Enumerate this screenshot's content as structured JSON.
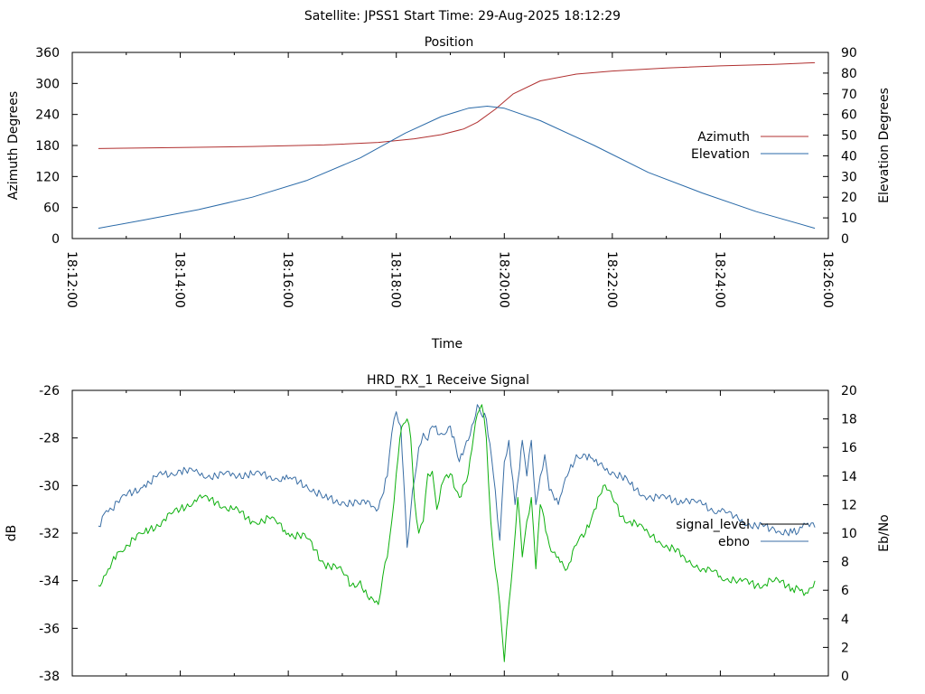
{
  "suptitle": "Satellite: JPSS1    Start Time: 29-Aug-2025 18:12:29",
  "colors": {
    "azimuth": "#b03030",
    "elevation": "#2a6aa8",
    "signal_level": "#000000",
    "ebno_line": "#3a6ea5",
    "signal_trace": "#0db00d"
  },
  "chart_data": [
    {
      "type": "line",
      "title": "Position",
      "xlabel": "Time",
      "ylabel": "Azimuth Degrees",
      "y2label": "Elevation Degrees",
      "xlim": [
        0,
        840
      ],
      "x_tick_values": [
        0,
        120,
        240,
        360,
        480,
        600,
        720,
        840
      ],
      "x_tick_labels": [
        "18:12:00",
        "18:14:00",
        "18:16:00",
        "18:18:00",
        "18:20:00",
        "18:22:00",
        "18:24:00",
        "18:26:00"
      ],
      "ylim": [
        0,
        360
      ],
      "y_ticks": [
        0,
        60,
        120,
        180,
        240,
        300,
        360
      ],
      "y2lim": [
        0,
        90
      ],
      "y2_ticks": [
        0,
        10,
        20,
        30,
        40,
        50,
        60,
        70,
        80,
        90
      ],
      "legend_position": "right",
      "grid": false,
      "series": [
        {
          "name": "Azimuth",
          "axis": "left",
          "x": [
            29,
            120,
            200,
            280,
            340,
            380,
            410,
            435,
            450,
            470,
            490,
            520,
            560,
            600,
            660,
            720,
            780,
            825
          ],
          "y": [
            174,
            176,
            178,
            181,
            186,
            193,
            201,
            212,
            225,
            250,
            280,
            305,
            318,
            324,
            330,
            334,
            337,
            340
          ]
        },
        {
          "name": "Elevation",
          "axis": "right",
          "x": [
            29,
            80,
            140,
            200,
            260,
            320,
            370,
            410,
            440,
            461,
            480,
            520,
            580,
            640,
            700,
            760,
            825
          ],
          "y": [
            5,
            9,
            14,
            20,
            28,
            39,
            51,
            59,
            63,
            64,
            63,
            57,
            45,
            32,
            22,
            13,
            5
          ]
        }
      ]
    },
    {
      "type": "line",
      "title": "HRD_RX_1 Receive Signal",
      "xlabel": "",
      "ylabel": "dB",
      "y2label": "Eb/No",
      "xlim": [
        0,
        840
      ],
      "ylim": [
        -38,
        -26
      ],
      "y_ticks": [
        -38,
        -36,
        -34,
        -32,
        -30,
        -28,
        -26
      ],
      "y2lim": [
        0,
        20
      ],
      "y2_ticks": [
        0,
        2,
        4,
        6,
        8,
        10,
        12,
        14,
        16,
        18,
        20
      ],
      "legend_position": "right",
      "legend_entries": [
        "signal_level",
        "ebno"
      ],
      "series": [
        {
          "name": "ebno",
          "axis": "right",
          "x": [
            29,
            40,
            60,
            80,
            100,
            120,
            140,
            160,
            180,
            200,
            220,
            240,
            260,
            280,
            300,
            320,
            330,
            340,
            350,
            355,
            360,
            365,
            368,
            372,
            378,
            385,
            390,
            395,
            400,
            410,
            420,
            430,
            440,
            450,
            460,
            470,
            475,
            480,
            485,
            492,
            497,
            500,
            505,
            510,
            515,
            520,
            525,
            530,
            540,
            550,
            560,
            570,
            580,
            590,
            600,
            610,
            620,
            640,
            660,
            680,
            700,
            720,
            740,
            760,
            780,
            800,
            815,
            825
          ],
          "y": [
            10.5,
            11.5,
            12.6,
            13.4,
            14.1,
            14.4,
            14.2,
            14.0,
            14.1,
            14.1,
            14.0,
            13.8,
            13.4,
            12.5,
            12.2,
            12.0,
            12.2,
            11.7,
            14.0,
            17.0,
            18.5,
            17.5,
            14.0,
            9.0,
            13.0,
            16.0,
            17.0,
            16.5,
            17.5,
            17.0,
            17.5,
            15.0,
            16.5,
            19.0,
            18.0,
            13.0,
            9.5,
            15.0,
            16.5,
            12.0,
            14.5,
            16.5,
            14.0,
            16.5,
            12.0,
            14.0,
            15.5,
            13.0,
            12.0,
            14.0,
            15.5,
            15.5,
            15.0,
            14.6,
            14.3,
            14.0,
            13.4,
            12.5,
            12.4,
            12.2,
            12.0,
            11.5,
            11.0,
            10.5,
            10.3,
            10.0,
            10.6,
            10.4
          ]
        },
        {
          "name": "",
          "axis": "left",
          "x": [
            29,
            35,
            40,
            50,
            60,
            80,
            100,
            120,
            140,
            160,
            180,
            200,
            220,
            240,
            260,
            280,
            300,
            310,
            320,
            330,
            340,
            345,
            350,
            355,
            360,
            364,
            368,
            372,
            376,
            380,
            385,
            390,
            395,
            400,
            405,
            410,
            420,
            430,
            440,
            450,
            455,
            460,
            465,
            470,
            475,
            480,
            485,
            490,
            495,
            500,
            505,
            510,
            515,
            520,
            530,
            540,
            550,
            560,
            570,
            580,
            590,
            600,
            610,
            620,
            640,
            660,
            680,
            700,
            720,
            740,
            760,
            780,
            800,
            815,
            825
          ],
          "y": [
            -34.2,
            -33.8,
            -33.5,
            -32.8,
            -32.5,
            -32.0,
            -31.5,
            -31.0,
            -30.5,
            -30.7,
            -31.0,
            -31.5,
            -31.4,
            -32.0,
            -32.2,
            -33.3,
            -33.6,
            -34.2,
            -34.0,
            -34.8,
            -35.0,
            -33.8,
            -33.0,
            -31.5,
            -29.5,
            -28.0,
            -27.4,
            -27.2,
            -28.0,
            -30.5,
            -32.0,
            -31.5,
            -29.5,
            -29.4,
            -31.0,
            -30.0,
            -29.5,
            -30.5,
            -29.5,
            -27.0,
            -26.6,
            -28.0,
            -31.5,
            -33.5,
            -35.0,
            -37.4,
            -35.0,
            -33.0,
            -30.5,
            -33.0,
            -31.5,
            -30.5,
            -33.5,
            -30.8,
            -32.5,
            -33.0,
            -33.5,
            -32.5,
            -32.0,
            -31.0,
            -30.0,
            -30.5,
            -31.3,
            -31.5,
            -32.0,
            -32.5,
            -33.0,
            -33.5,
            -33.8,
            -34.0,
            -34.2,
            -34.0,
            -34.3,
            -34.5,
            -34.0
          ]
        }
      ]
    }
  ]
}
